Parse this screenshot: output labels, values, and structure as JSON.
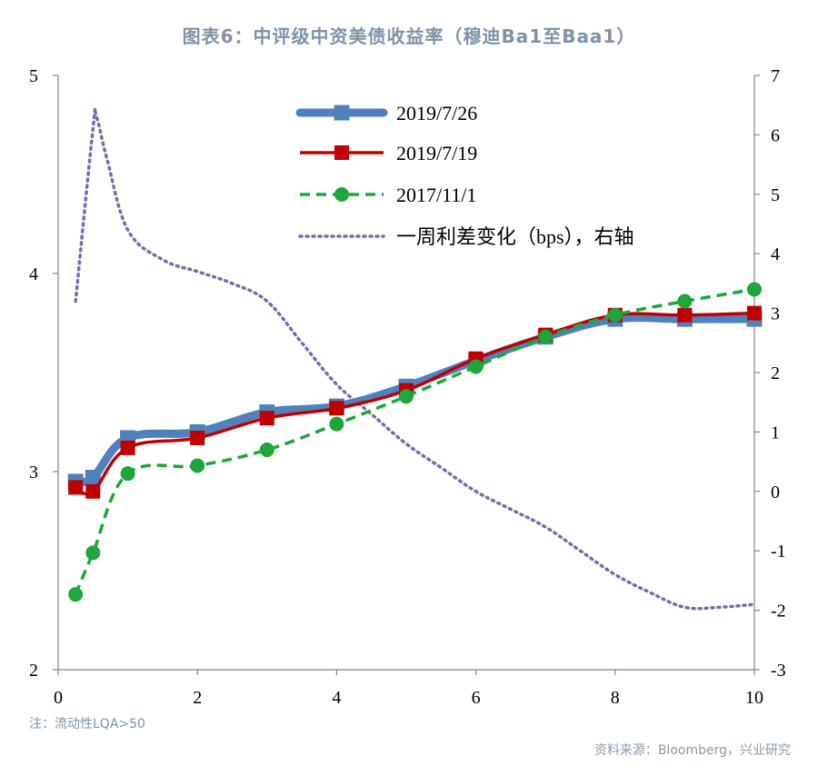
{
  "title": "图表6：中评级中资美债收益率（穆迪Ba1至Baa1）",
  "note": "注：流动性LQA>50",
  "source": "资料来源：Bloomberg，兴业研究",
  "chart_data": {
    "type": "line",
    "x_ticks": [
      "0",
      "2",
      "4",
      "6",
      "8",
      "10"
    ],
    "xlim": [
      0,
      10
    ],
    "left_axis": {
      "ylim": [
        2,
        5
      ],
      "ticks": [
        "2",
        "3",
        "4",
        "5"
      ]
    },
    "right_axis": {
      "ylim": [
        -3,
        7
      ],
      "ticks": [
        "-3",
        "-2",
        "-1",
        "0",
        "1",
        "2",
        "3",
        "4",
        "5",
        "6",
        "7"
      ]
    },
    "grid": false,
    "legend_position": "top-center",
    "series": [
      {
        "name": "2019/7/26",
        "axis": "left",
        "color": "#4f81bd",
        "marker": "square",
        "style": "solid-thick",
        "x": [
          0.25,
          0.5,
          1,
          2,
          3,
          4,
          5,
          6,
          7,
          8,
          9,
          10
        ],
        "y": [
          2.95,
          2.97,
          3.17,
          3.2,
          3.3,
          3.33,
          3.43,
          3.56,
          3.68,
          3.77,
          3.77,
          3.77
        ]
      },
      {
        "name": "2019/7/19",
        "axis": "left",
        "color": "#c00000",
        "marker": "square",
        "style": "solid",
        "x": [
          0.25,
          0.5,
          1,
          2,
          3,
          4,
          5,
          6,
          7,
          8,
          9,
          10
        ],
        "y": [
          2.92,
          2.9,
          3.12,
          3.17,
          3.27,
          3.32,
          3.41,
          3.57,
          3.69,
          3.79,
          3.79,
          3.8
        ]
      },
      {
        "name": "2017/11/1",
        "axis": "left",
        "color": "#1fa63a",
        "marker": "circle",
        "style": "dashed",
        "x": [
          0.25,
          0.5,
          1,
          2,
          3,
          4,
          5,
          6,
          7,
          8,
          9,
          10
        ],
        "y": [
          2.38,
          2.59,
          2.99,
          3.03,
          3.11,
          3.24,
          3.38,
          3.53,
          3.68,
          3.79,
          3.86,
          3.92
        ]
      },
      {
        "name": "一周利差变化（bps），右轴",
        "axis": "right",
        "color": "#7a6cab",
        "marker": "none",
        "style": "dotted",
        "x": [
          0.25,
          0.5,
          0.55,
          0.7,
          1,
          1.5,
          2,
          2.5,
          3,
          3.5,
          4,
          4.5,
          5,
          5.5,
          6,
          6.5,
          7,
          7.5,
          8,
          8.5,
          9,
          9.5,
          10
        ],
        "y": [
          3.2,
          6.1,
          6.3,
          5.6,
          4.4,
          3.9,
          3.7,
          3.5,
          3.2,
          2.5,
          1.8,
          1.3,
          0.8,
          0.4,
          0.0,
          -0.3,
          -0.6,
          -1.0,
          -1.4,
          -1.7,
          -1.95,
          -1.95,
          -1.9
        ]
      }
    ]
  }
}
